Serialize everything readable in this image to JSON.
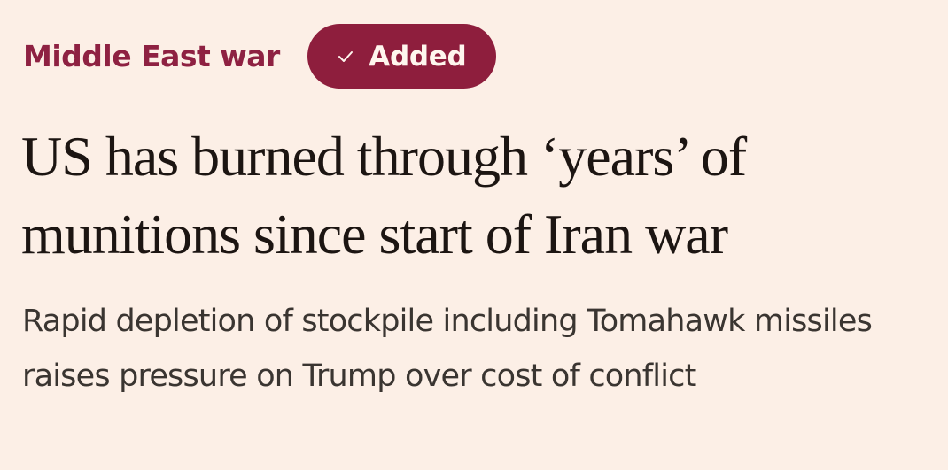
{
  "topic": {
    "label": "Middle East war"
  },
  "follow_button": {
    "label": "Added",
    "icon": "check-icon"
  },
  "article": {
    "headline": "US has burned through ‘years’ of munitions since start of Iran war",
    "standfirst": "Rapid depletion of stockpile including Tomahawk missiles raises pressure on Trump over cost of conflict"
  },
  "colors": {
    "background": "#fcefe6",
    "accent": "#8e1e3d",
    "headline_text": "#1c1512",
    "body_text": "#3a3531"
  }
}
